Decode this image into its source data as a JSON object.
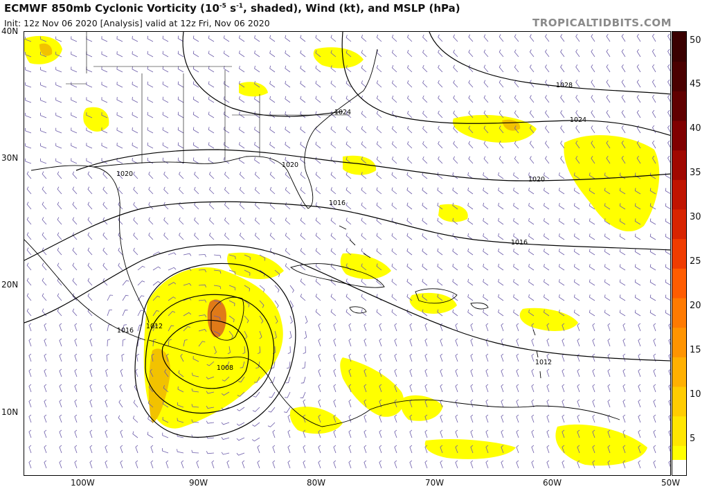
{
  "header": {
    "title_pre": "ECMWF 850mb Cyclonic Vorticity (10",
    "title_exp": "-5",
    "title_mid": " s",
    "title_exp2": "-1",
    "title_post": ", shaded), Wind (kt), and MSLP (hPa)",
    "init_line": "Init: 12z Nov 06 2020  [Analysis]   valid at 12z Fri, Nov 06 2020",
    "brand": "TROPICALTIDBITS.COM"
  },
  "axes": {
    "lat_labels": [
      "40N",
      "30N",
      "20N",
      "10N"
    ],
    "lon_labels": [
      "100W",
      "90W",
      "80W",
      "70W",
      "60W",
      "50W"
    ]
  },
  "colorbar": {
    "ticks": [
      "50",
      "45",
      "40",
      "35",
      "30",
      "25",
      "20",
      "15",
      "10",
      "5"
    ],
    "colors": [
      "#ffff00",
      "#ffe600",
      "#ffcc00",
      "#ffb000",
      "#ff9400",
      "#ff7a00",
      "#ff5c00",
      "#f03c00",
      "#d82400",
      "#c01400",
      "#a00800",
      "#800000",
      "#600000",
      "#4a0000",
      "#3a0000"
    ]
  },
  "isobars": {
    "labels": [
      "1028",
      "1024",
      "1024",
      "1020",
      "1020",
      "1020",
      "1016",
      "1016",
      "1016",
      "1012",
      "1012",
      "1008"
    ]
  },
  "colors": {
    "vort_low": "#ffff00",
    "vort_mid": "#f2c200",
    "vort_high": "#e07a18",
    "isobar": "#000000",
    "coast": "#000000",
    "barb": "#6a5aa8"
  }
}
